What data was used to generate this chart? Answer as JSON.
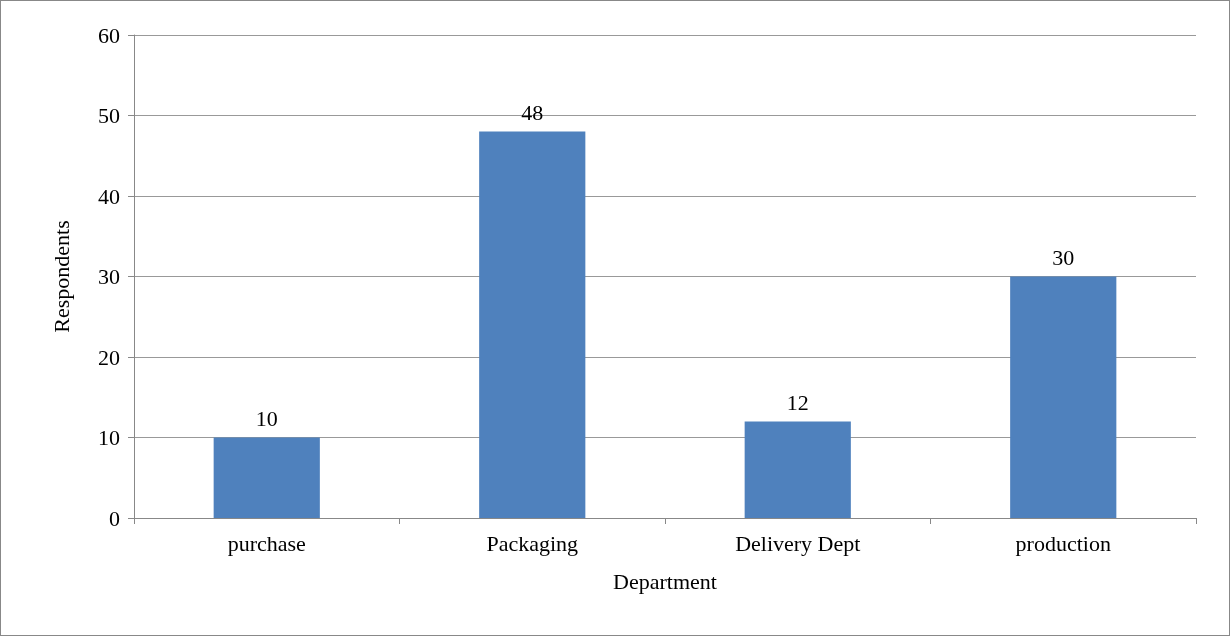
{
  "chart_data": {
    "type": "bar",
    "xlabel": "Department",
    "ylabel": "Respondents",
    "categories": [
      "purchase",
      "Packaging",
      "Delivery Dept",
      "production"
    ],
    "values": [
      10,
      48,
      12,
      30
    ],
    "color": "#4f81bd",
    "ylim": [
      0,
      60
    ],
    "yticks": [
      0,
      10,
      20,
      30,
      40,
      50,
      60
    ],
    "grid": "y",
    "data_labels": true
  }
}
